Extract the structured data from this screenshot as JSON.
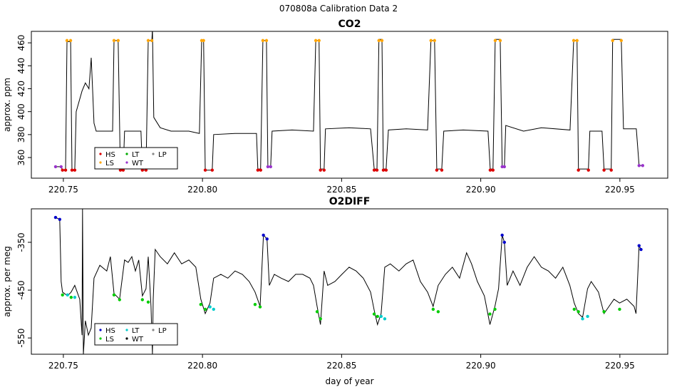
{
  "page_title": "070808a   Calibration Data 2",
  "chart_data": [
    {
      "type": "line",
      "title": "CO2",
      "ylabel": "approx. ppm",
      "legend": "bottomleft",
      "xlim": [
        220.7385,
        220.9672
      ],
      "ylim": [
        342,
        470
      ],
      "xticks": [
        220.75,
        {
          "value": 220.8,
          "label": "220.80"
        },
        220.85,
        {
          "value": 220.9,
          "label": "220.90"
        },
        220.95
      ],
      "yticks": [
        360,
        380,
        400,
        420,
        440,
        460
      ],
      "line": {
        "color": "#000000",
        "x": [
          220.7472,
          220.7492,
          220.7497,
          220.7508,
          220.7513,
          220.7526,
          220.7531,
          220.7541,
          220.7546,
          220.7567,
          220.7579,
          220.7592,
          220.76,
          220.7605,
          220.761,
          220.7618,
          220.7677,
          220.7682,
          220.7697,
          220.7705,
          220.7715,
          220.772,
          220.7779,
          220.7784,
          220.7797,
          220.7805,
          220.7818,
          220.782,
          220.7825,
          220.7848,
          220.7887,
          220.7951,
          220.7989,
          220.7997,
          220.8004,
          220.801,
          220.8035,
          220.804,
          220.8117,
          220.8194,
          220.8199,
          220.8209,
          220.8217,
          220.823,
          220.8235,
          220.8245,
          220.825,
          220.8322,
          220.8399,
          220.8407,
          220.8419,
          220.8424,
          220.8437,
          220.8442,
          220.8527,
          220.8604,
          220.8617,
          220.8627,
          220.8634,
          220.8645,
          220.865,
          220.866,
          220.8668,
          220.8732,
          220.8809,
          220.8821,
          220.8834,
          220.8842,
          220.886,
          220.8867,
          220.8937,
          220.9026,
          220.9034,
          220.9044,
          220.9052,
          220.907,
          220.9077,
          220.9085,
          220.909,
          220.9154,
          220.9218,
          220.9321,
          220.9334,
          220.9346,
          220.9351,
          220.9387,
          220.9392,
          220.9436,
          220.9443,
          220.9469,
          220.9474,
          220.9505,
          220.9513,
          220.9559,
          220.9569,
          220.9582
        ],
        "y": [
          352,
          352,
          349,
          349,
          461,
          461,
          349,
          349,
          400,
          418,
          425,
          420,
          447,
          420,
          390,
          383,
          383,
          462,
          462,
          349,
          349,
          383,
          383,
          349,
          349,
          462,
          462,
          472,
          395,
          386,
          383,
          383,
          381,
          462,
          462,
          349,
          349,
          380,
          381,
          381,
          350,
          350,
          462,
          462,
          352,
          352,
          383,
          384,
          383,
          462,
          462,
          350,
          350,
          385,
          386,
          385,
          350,
          350,
          463,
          463,
          350,
          350,
          384,
          385,
          384,
          462,
          462,
          350,
          350,
          383,
          384,
          383,
          350,
          350,
          463,
          463,
          352,
          352,
          388,
          383,
          386,
          384,
          462,
          462,
          350,
          350,
          383,
          383,
          350,
          350,
          463,
          463,
          385,
          385,
          353,
          353
        ]
      },
      "series": [
        {
          "name": "HS",
          "color": "#dd0000",
          "x": [
            220.7497,
            220.7508,
            220.7531,
            220.7541,
            220.7705,
            220.7715,
            220.7784,
            220.7797,
            220.801,
            220.8035,
            220.8199,
            220.8209,
            220.8424,
            220.8437,
            220.8617,
            220.8627,
            220.865,
            220.866,
            220.8842,
            220.886,
            220.9034,
            220.9044,
            220.9351,
            220.9387,
            220.9443,
            220.9469
          ],
          "values": [
            349,
            349,
            349,
            349,
            349,
            349,
            349,
            349,
            349,
            349,
            349,
            349,
            349,
            349,
            349,
            349,
            349,
            349,
            349,
            349,
            349,
            349,
            349,
            349,
            349,
            349
          ]
        },
        {
          "name": "LS",
          "color": "#ffa500",
          "x": [
            220.7513,
            220.7526,
            220.7682,
            220.7697,
            220.7805,
            220.7818,
            220.7997,
            220.8004,
            220.8217,
            220.823,
            220.8407,
            220.8419,
            220.8634,
            220.8645,
            220.8821,
            220.8834,
            220.9052,
            220.907,
            220.9334,
            220.9346,
            220.9474,
            220.9505
          ],
          "values": [
            462,
            462,
            462,
            462,
            462,
            462,
            462,
            462,
            462,
            462,
            462,
            462,
            462,
            462,
            462,
            462,
            462,
            462,
            462,
            462,
            462,
            462
          ]
        },
        {
          "name": "LT",
          "color": "#00aa00",
          "x": [],
          "values": []
        },
        {
          "name": "WT",
          "color": "#9933cc",
          "x": [
            220.7472,
            220.7492,
            220.8235,
            220.8245,
            220.9077,
            220.9085,
            220.9569,
            220.9582
          ],
          "values": [
            352,
            352,
            352,
            352,
            352,
            352,
            353,
            353
          ]
        },
        {
          "name": "LP",
          "color": "#888888",
          "x": [],
          "values": []
        }
      ]
    },
    {
      "type": "line",
      "title": "O2DIFF",
      "ylabel": "approx. per meg",
      "xlabel": "day of year",
      "legend": "bottomleft",
      "xlim": [
        220.7385,
        220.9672
      ],
      "ylim": [
        -584,
        -280
      ],
      "xticks": [
        220.75,
        {
          "value": 220.8,
          "label": "220.80"
        },
        220.85,
        {
          "value": 220.9,
          "label": "220.90"
        },
        220.95
      ],
      "yticks": [
        -550,
        -450,
        -350
      ],
      "line": {
        "color": "#000000",
        "x": [
          220.7472,
          220.7487,
          220.7492,
          220.7497,
          220.7515,
          220.7528,
          220.7541,
          220.7559,
          220.7567,
          220.7569,
          220.7572,
          220.7579,
          220.759,
          220.76,
          220.761,
          220.7631,
          220.7656,
          220.7669,
          220.7682,
          220.7702,
          220.772,
          220.7733,
          220.7746,
          220.7759,
          220.7771,
          220.7784,
          220.7797,
          220.7805,
          220.7815,
          220.782,
          220.7823,
          220.783,
          220.7848,
          220.7874,
          220.7899,
          220.7925,
          220.7951,
          220.7976,
          220.7994,
          220.801,
          220.8027,
          220.804,
          220.8066,
          220.8091,
          220.8117,
          220.8143,
          220.8168,
          220.8189,
          220.8207,
          220.8219,
          220.8232,
          220.824,
          220.8258,
          220.8283,
          220.8309,
          220.8335,
          220.836,
          220.8386,
          220.8399,
          220.8412,
          220.8424,
          220.8437,
          220.845,
          220.8476,
          220.8501,
          220.8527,
          220.8552,
          220.8578,
          220.8604,
          220.8617,
          220.8629,
          220.8642,
          220.8655,
          220.8675,
          220.8706,
          220.8732,
          220.8757,
          220.8783,
          220.8809,
          220.8829,
          220.8847,
          220.8873,
          220.8898,
          220.8924,
          220.8949,
          220.8967,
          220.8988,
          220.9013,
          220.9033,
          220.9051,
          220.9064,
          220.9077,
          220.9085,
          220.9095,
          220.9116,
          220.9141,
          220.9167,
          220.9192,
          220.9218,
          220.9243,
          220.9269,
          220.9295,
          220.932,
          220.9336,
          220.9351,
          220.9366,
          220.9384,
          220.9397,
          220.9423,
          220.9443,
          220.9461,
          220.9479,
          220.9499,
          220.9525,
          220.9551,
          220.9558,
          220.9569,
          220.9576
        ],
        "y": [
          -298,
          -302,
          -432,
          -454,
          -462,
          -454,
          -440,
          -469,
          -544,
          -280,
          -584,
          -514,
          -544,
          -529,
          -425,
          -398,
          -410,
          -380,
          -457,
          -469,
          -387,
          -392,
          -380,
          -410,
          -387,
          -462,
          -447,
          -380,
          -484,
          -584,
          -469,
          -365,
          -380,
          -395,
          -372,
          -395,
          -387,
          -402,
          -469,
          -499,
          -477,
          -425,
          -417,
          -425,
          -410,
          -417,
          -432,
          -454,
          -484,
          -335,
          -343,
          -440,
          -417,
          -425,
          -432,
          -417,
          -417,
          -425,
          -440,
          -484,
          -522,
          -410,
          -440,
          -432,
          -417,
          -402,
          -410,
          -425,
          -454,
          -492,
          -522,
          -499,
          -402,
          -395,
          -410,
          -395,
          -387,
          -432,
          -454,
          -484,
          -440,
          -417,
          -402,
          -425,
          -372,
          -395,
          -432,
          -462,
          -522,
          -484,
          -447,
          -335,
          -350,
          -440,
          -410,
          -440,
          -402,
          -380,
          -402,
          -410,
          -425,
          -402,
          -440,
          -477,
          -499,
          -507,
          -447,
          -432,
          -454,
          -499,
          -484,
          -469,
          -477,
          -469,
          -484,
          -499,
          -357,
          -365
        ]
      },
      "series": [
        {
          "name": "HS",
          "color": "#0000cc",
          "x": [
            220.7472,
            220.7487,
            220.8219,
            220.8232,
            220.9077,
            220.9085,
            220.9569,
            220.9576
          ],
          "values": [
            -298,
            -302,
            -335,
            -343,
            -335,
            -350,
            -357,
            -365
          ]
        },
        {
          "name": "LS",
          "color": "#00cc00",
          "x": [
            220.7497,
            220.7528,
            220.7682,
            220.7702,
            220.7784,
            220.7805,
            220.7994,
            220.801,
            220.8189,
            220.8207,
            220.8412,
            220.8424,
            220.8617,
            220.8629,
            220.8829,
            220.8847,
            220.9033,
            220.9051,
            220.9336,
            220.9351,
            220.9443,
            220.9499
          ],
          "values": [
            -460,
            -465,
            -460,
            -470,
            -470,
            -475,
            -480,
            -490,
            -480,
            -485,
            -495,
            -510,
            -500,
            -505,
            -490,
            -495,
            -500,
            -490,
            -490,
            -495,
            -495,
            -490
          ]
        },
        {
          "name": "LT",
          "color": "#00cccc",
          "x": [
            220.7515,
            220.7541,
            220.8027,
            220.804,
            220.8642,
            220.8655,
            220.9366,
            220.9384
          ],
          "values": [
            -460,
            -465,
            -485,
            -490,
            -505,
            -510,
            -510,
            -505
          ]
        },
        {
          "name": "WT",
          "color": "#000000",
          "x": [],
          "values": []
        },
        {
          "name": "LP",
          "color": "#888888",
          "x": [],
          "values": []
        }
      ]
    }
  ]
}
